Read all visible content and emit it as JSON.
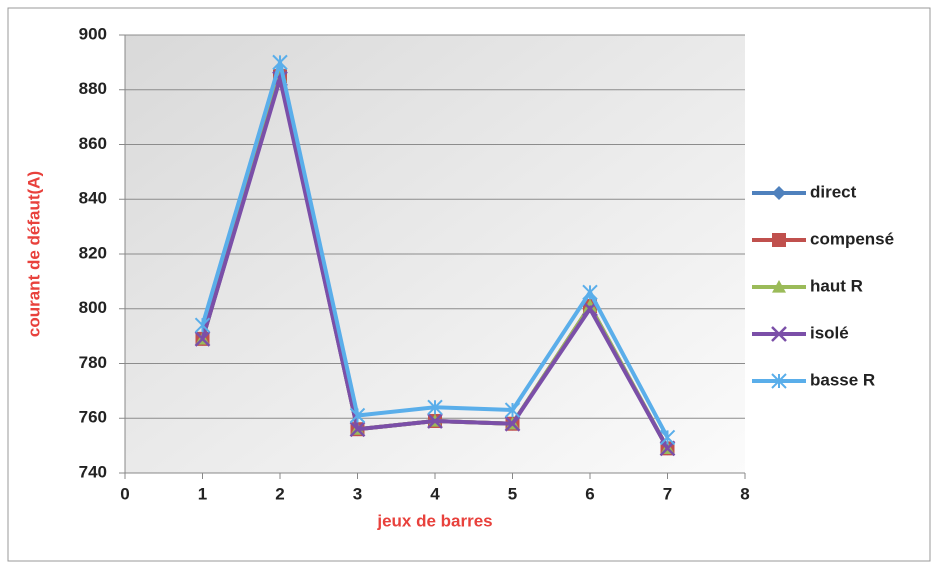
{
  "chart_data": {
    "type": "line",
    "x_label": "jeux de barres",
    "y_label": "courant de défaut(A)",
    "x": [
      1,
      2,
      3,
      4,
      5,
      6,
      7
    ],
    "series": [
      {
        "name": "direct",
        "color": "#4f81bd",
        "marker": "diamond",
        "values": [
          789,
          885,
          756,
          759,
          758,
          801,
          749
        ]
      },
      {
        "name": "compensé",
        "color": "#c0504d",
        "marker": "square",
        "values": [
          789,
          885,
          756,
          759,
          758,
          801,
          749
        ]
      },
      {
        "name": "haut R",
        "color": "#9bbb59",
        "marker": "triangle",
        "values": [
          789,
          885,
          756,
          759,
          758,
          801,
          749
        ]
      },
      {
        "name": "isolé",
        "color": "#7b4fa8",
        "marker": "x",
        "values": [
          789,
          884,
          756,
          759,
          758,
          800,
          749
        ]
      },
      {
        "name": "basse R",
        "color": "#5aaeea",
        "marker": "star",
        "values": [
          794,
          890,
          761,
          764,
          763,
          806,
          753
        ]
      }
    ],
    "xlim": [
      0,
      8
    ],
    "xticks": [
      0,
      1,
      2,
      3,
      4,
      5,
      6,
      7,
      8
    ],
    "ylim": [
      740,
      900
    ],
    "yticks": [
      740,
      760,
      780,
      800,
      820,
      840,
      860,
      880,
      900
    ],
    "grid": true,
    "legend": "right"
  }
}
